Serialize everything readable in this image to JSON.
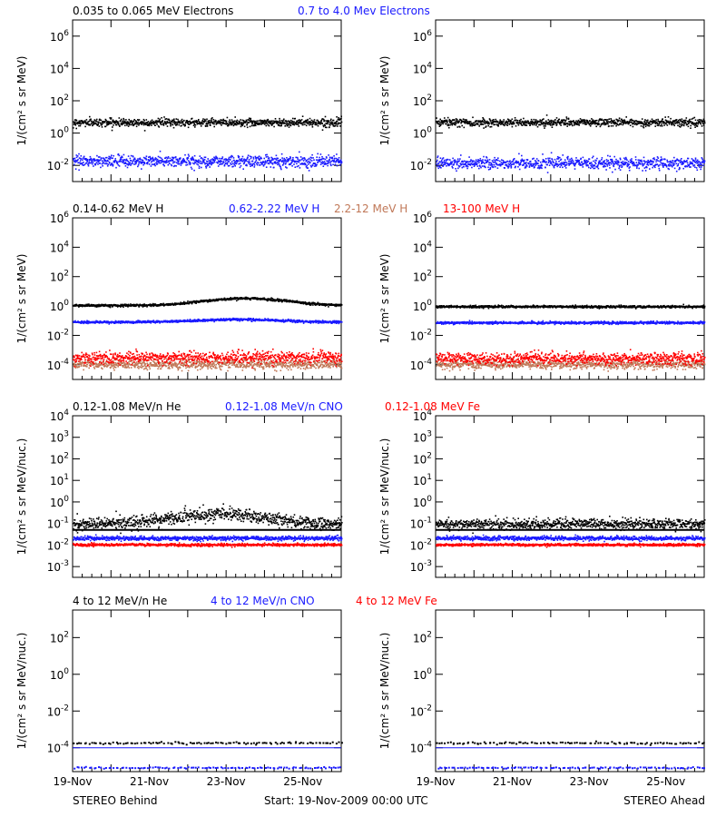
{
  "footer": {
    "left": "STEREO Behind",
    "center": "Start: 19-Nov-2009 00:00 UTC",
    "right": "STEREO Ahead"
  },
  "x_tick_labels": [
    "19-Nov",
    "21-Nov",
    "23-Nov",
    "25-Nov"
  ],
  "colors": {
    "black": "#000000",
    "blue": "#1a1aff",
    "brown": "#c07858",
    "red": "#ff0000",
    "background": "#ffffff"
  },
  "chart_data": [
    {
      "type": "scatter",
      "panel": "electrons",
      "legend": [
        {
          "label": "0.035 to 0.065 MeV Electrons",
          "color": "black"
        },
        {
          "label": "0.7 to 4.0 Mev Electrons",
          "color": "blue"
        }
      ],
      "ylabel": "1/(cm² s sr MeV)",
      "yscale": "log",
      "ylim_exp": [
        -3,
        7
      ],
      "yticks": [
        {
          "exp": 6,
          "label": "10^6"
        },
        {
          "exp": 4,
          "label": "10^4"
        },
        {
          "exp": 2,
          "label": "10^2"
        },
        {
          "exp": 0,
          "label": "10^0"
        },
        {
          "exp": -2,
          "label": "10^-2"
        }
      ],
      "xlim_days": [
        0,
        7
      ],
      "behind": [
        {
          "color": "black",
          "base": 5,
          "noise": 0.12,
          "drift": 0
        },
        {
          "color": "blue",
          "base": 0.02,
          "noise": 0.18,
          "drift": 0
        }
      ],
      "ahead": [
        {
          "color": "black",
          "base": 5,
          "noise": 0.12,
          "drift": 0
        },
        {
          "color": "blue",
          "base": 0.015,
          "noise": 0.18,
          "drift": 0
        }
      ]
    },
    {
      "type": "scatter",
      "panel": "protons",
      "legend": [
        {
          "label": "0.14-0.62 MeV H",
          "color": "black"
        },
        {
          "label": "0.62-2.22 MeV H",
          "color": "blue"
        },
        {
          "label": "2.2-12 MeV H",
          "color": "brown"
        },
        {
          "label": "13-100 MeV H",
          "color": "red"
        }
      ],
      "ylabel": "1/(cm² s sr MeV)",
      "yscale": "log",
      "ylim_exp": [
        -5,
        6
      ],
      "yticks": [
        {
          "exp": 6,
          "label": "10^6"
        },
        {
          "exp": 4,
          "label": "10^4"
        },
        {
          "exp": 2,
          "label": "10^2"
        },
        {
          "exp": 0,
          "label": "10^0"
        },
        {
          "exp": -2,
          "label": "10^-2"
        },
        {
          "exp": -4,
          "label": "10^-4"
        }
      ],
      "xlim_days": [
        0,
        7
      ],
      "behind": [
        {
          "color": "black",
          "base": 1.2,
          "noise": 0.04,
          "hump": {
            "center": 4.5,
            "width": 1.3,
            "factor": 3
          }
        },
        {
          "color": "blue",
          "base": 0.09,
          "noise": 0.04,
          "hump": {
            "center": 4.3,
            "width": 1.3,
            "factor": 1.5
          }
        },
        {
          "color": "brown",
          "base": 0.00012,
          "noise": 0.15
        },
        {
          "color": "red",
          "base": 0.00035,
          "noise": 0.2
        }
      ],
      "ahead": [
        {
          "color": "black",
          "base": 1.0,
          "noise": 0.04
        },
        {
          "color": "blue",
          "base": 0.08,
          "noise": 0.04
        },
        {
          "color": "brown",
          "base": 0.00012,
          "noise": 0.15
        },
        {
          "color": "red",
          "base": 0.0003,
          "noise": 0.2
        }
      ]
    },
    {
      "type": "scatter",
      "panel": "heavy-low",
      "legend": [
        {
          "label": "0.12-1.08 MeV/n He",
          "color": "black"
        },
        {
          "label": "0.12-1.08 MeV/n CNO",
          "color": "blue"
        },
        {
          "label": "0.12-1.08 MeV Fe",
          "color": "red"
        }
      ],
      "ylabel": "1/(cm² s sr MeV/nuc.)",
      "yscale": "log",
      "ylim_exp": [
        -3.5,
        4
      ],
      "yticks": [
        {
          "exp": 4,
          "label": "10^4"
        },
        {
          "exp": 3,
          "label": "10^3"
        },
        {
          "exp": 2,
          "label": "10^2"
        },
        {
          "exp": 1,
          "label": "10^1"
        },
        {
          "exp": 0,
          "label": "10^0"
        },
        {
          "exp": -1,
          "label": "10^-1"
        },
        {
          "exp": -2,
          "label": "10^-2"
        },
        {
          "exp": -3,
          "label": "10^-3"
        }
      ],
      "xlim_days": [
        0,
        7
      ],
      "behind": [
        {
          "color": "black",
          "base": 0.1,
          "noise": 0.15,
          "hump": {
            "center": 3.8,
            "width": 1.4,
            "factor": 3
          }
        },
        {
          "color": "blue",
          "base": 0.022,
          "noise": 0.05
        },
        {
          "color": "red",
          "base": 0.011,
          "noise": 0.03
        }
      ],
      "ahead": [
        {
          "color": "black",
          "base": 0.1,
          "noise": 0.12
        },
        {
          "color": "blue",
          "base": 0.022,
          "noise": 0.05
        },
        {
          "color": "red",
          "base": 0.011,
          "noise": 0.03
        }
      ],
      "reference_lines": [
        {
          "value": 0.05,
          "color": "black"
        }
      ]
    },
    {
      "type": "scatter",
      "panel": "heavy-high",
      "legend": [
        {
          "label": "4 to 12 MeV/n He",
          "color": "black"
        },
        {
          "label": "4 to 12 MeV/n CNO",
          "color": "blue"
        },
        {
          "label": "4 to 12 MeV Fe",
          "color": "red"
        }
      ],
      "ylabel": "1/(cm² s sr MeV/nuc.)",
      "yscale": "log",
      "ylim_exp": [
        -5.3,
        3.5
      ],
      "yticks": [
        {
          "exp": 2,
          "label": "10^2"
        },
        {
          "exp": 0,
          "label": "10^0"
        },
        {
          "exp": -2,
          "label": "10^-2"
        },
        {
          "exp": -4,
          "label": "10^-4"
        }
      ],
      "xlim_days": [
        0,
        7
      ],
      "behind": [
        {
          "color": "black",
          "base": 0.0002,
          "noise": 0.03,
          "sparse": true
        },
        {
          "color": "blue",
          "base": 9e-06,
          "noise": 0.02,
          "sparse": true
        }
      ],
      "ahead": [
        {
          "color": "black",
          "base": 0.0002,
          "noise": 0.03,
          "sparse": true
        },
        {
          "color": "blue",
          "base": 9e-06,
          "noise": 0.02,
          "sparse": true
        }
      ],
      "reference_lines": [
        {
          "value": 0.0001,
          "color": "blue"
        }
      ]
    }
  ]
}
